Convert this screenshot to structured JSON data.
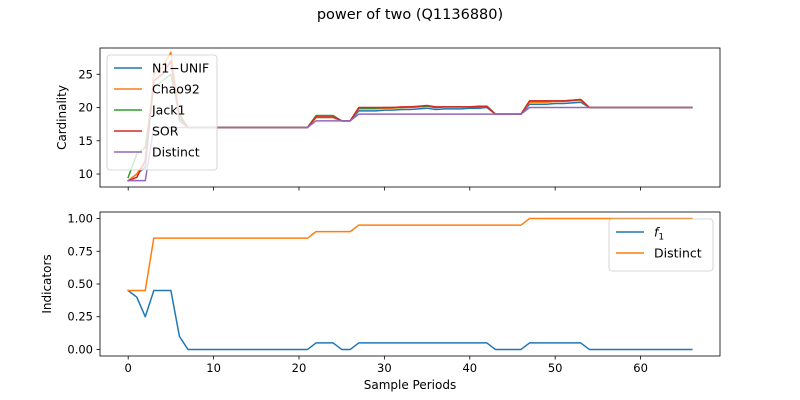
{
  "figure": {
    "suptitle": "power of two (Q1136880)"
  },
  "chart_data": [
    {
      "type": "line",
      "title": "",
      "xlabel": "",
      "ylabel": "Cardinality",
      "xlim": [
        -3.3,
        69.3
      ],
      "ylim": [
        8.05,
        28.95
      ],
      "xticks": [
        0,
        10,
        20,
        30,
        40,
        50,
        60
      ],
      "xtick_labels_visible": false,
      "yticks": [
        10,
        15,
        20,
        25
      ],
      "ytick_labels": [
        "10",
        "15",
        "20",
        "25"
      ],
      "grid": false,
      "legend_position": "upper-left",
      "series": [
        {
          "name": "N1−UNIF",
          "color": "#1f77b4",
          "x": [
            0,
            1,
            2,
            3,
            4,
            5,
            6,
            7,
            8,
            9,
            10,
            11,
            12,
            13,
            14,
            15,
            16,
            17,
            18,
            19,
            20,
            21,
            22,
            23,
            24,
            25,
            26,
            27,
            28,
            29,
            30,
            31,
            32,
            33,
            34,
            35,
            36,
            37,
            38,
            39,
            40,
            41,
            42,
            43,
            44,
            45,
            46,
            47,
            48,
            49,
            50,
            51,
            52,
            53,
            54,
            55,
            56,
            57,
            58,
            59,
            60,
            61,
            62,
            63,
            64,
            65,
            66
          ],
          "y": [
            9,
            10,
            11,
            24,
            25,
            27,
            18,
            17,
            17,
            17,
            17,
            17,
            17,
            17,
            17,
            17,
            17,
            17,
            17,
            17,
            17,
            17,
            18.5,
            18.5,
            18.5,
            18,
            18,
            19.5,
            19.5,
            19.5,
            19.6,
            19.6,
            19.7,
            19.7,
            19.8,
            19.9,
            19.7,
            19.8,
            19.8,
            19.8,
            19.9,
            19.9,
            20,
            19,
            19,
            19,
            19,
            20.5,
            20.5,
            20.5,
            20.6,
            20.6,
            20.7,
            20.8,
            20,
            20,
            20,
            20,
            20,
            20,
            20,
            20,
            20,
            20,
            20,
            20,
            20
          ]
        },
        {
          "name": "Chao92",
          "color": "#ff7f0e",
          "x": [
            0,
            1,
            2,
            3,
            4,
            5,
            6,
            7,
            8,
            9,
            10,
            11,
            12,
            13,
            14,
            15,
            16,
            17,
            18,
            19,
            20,
            21,
            22,
            23,
            24,
            25,
            26,
            27,
            28,
            29,
            30,
            31,
            32,
            33,
            34,
            35,
            36,
            37,
            38,
            39,
            40,
            41,
            42,
            43,
            44,
            45,
            46,
            47,
            48,
            49,
            50,
            51,
            52,
            53,
            54,
            55,
            56,
            57,
            58,
            59,
            60,
            61,
            62,
            63,
            64,
            65,
            66
          ],
          "y": [
            9,
            10,
            12,
            25,
            26,
            28.3,
            18.5,
            17,
            17,
            17,
            17,
            17,
            17,
            17,
            17,
            17,
            17,
            17,
            17,
            17,
            17,
            17,
            18.5,
            18.5,
            18.5,
            18,
            18,
            19.8,
            19.8,
            19.8,
            19.9,
            19.9,
            20,
            20,
            20.1,
            20.2,
            20,
            20.1,
            20.1,
            20.1,
            20.1,
            20.1,
            20.2,
            19,
            19,
            19,
            19,
            20.8,
            20.8,
            20.8,
            20.9,
            20.9,
            21,
            21.1,
            20,
            20,
            20,
            20,
            20,
            20,
            20,
            20,
            20,
            20,
            20,
            20,
            20
          ]
        },
        {
          "name": "Jack1",
          "color": "#2ca02c",
          "x": [
            0,
            1,
            2,
            3,
            4,
            5,
            6,
            7,
            8,
            9,
            10,
            11,
            12,
            13,
            14,
            15,
            16,
            17,
            18,
            19,
            20,
            21,
            22,
            23,
            24,
            25,
            26,
            27,
            28,
            29,
            30,
            31,
            32,
            33,
            34,
            35,
            36,
            37,
            38,
            39,
            40,
            41,
            42,
            43,
            44,
            45,
            46,
            47,
            48,
            49,
            50,
            51,
            52,
            53,
            54,
            55,
            56,
            57,
            58,
            59,
            60,
            61,
            62,
            63,
            64,
            65,
            66
          ],
          "y": [
            9.5,
            13,
            14,
            23,
            24,
            25,
            19,
            17,
            17,
            17,
            17,
            17,
            17,
            17,
            17,
            17,
            17,
            17,
            17,
            17,
            17,
            17,
            18.8,
            18.8,
            18.8,
            18,
            18,
            19.9,
            19.9,
            19.9,
            20,
            20,
            20,
            20.1,
            20.1,
            20.2,
            20,
            20.1,
            20.1,
            20.1,
            20.1,
            20.1,
            20.2,
            19,
            19,
            19,
            19,
            21,
            21,
            21,
            21,
            21,
            21.1,
            21.2,
            20,
            20,
            20,
            20,
            20,
            20,
            20,
            20,
            20,
            20,
            20,
            20,
            20
          ]
        },
        {
          "name": "SOR",
          "color": "#d62728",
          "x": [
            0,
            1,
            2,
            3,
            4,
            5,
            6,
            7,
            8,
            9,
            10,
            11,
            12,
            13,
            14,
            15,
            16,
            17,
            18,
            19,
            20,
            21,
            22,
            23,
            24,
            25,
            26,
            27,
            28,
            29,
            30,
            31,
            32,
            33,
            34,
            35,
            36,
            37,
            38,
            39,
            40,
            41,
            42,
            43,
            44,
            45,
            46,
            47,
            48,
            49,
            50,
            51,
            52,
            53,
            54,
            55,
            56,
            57,
            58,
            59,
            60,
            61,
            62,
            63,
            64,
            65,
            66
          ],
          "y": [
            9,
            9.5,
            12,
            24,
            25,
            27,
            18.5,
            17,
            17,
            17,
            17,
            17,
            17,
            17,
            17,
            17,
            17,
            17,
            17,
            17,
            17,
            17,
            18.6,
            18.6,
            18.6,
            18,
            18,
            20,
            20,
            20,
            20,
            20,
            20.1,
            20.1,
            20.2,
            20.3,
            20.1,
            20.1,
            20.1,
            20.1,
            20.1,
            20.2,
            20.2,
            19,
            19,
            19,
            19,
            21,
            21,
            21,
            21,
            21,
            21.1,
            21.2,
            20,
            20,
            20,
            20,
            20,
            20,
            20,
            20,
            20,
            20,
            20,
            20,
            20
          ]
        },
        {
          "name": "Distinct",
          "color": "#9467bd",
          "x": [
            0,
            1,
            2,
            3,
            4,
            5,
            6,
            7,
            8,
            9,
            10,
            11,
            12,
            13,
            14,
            15,
            16,
            17,
            18,
            19,
            20,
            21,
            22,
            23,
            24,
            25,
            26,
            27,
            28,
            29,
            30,
            31,
            32,
            33,
            34,
            35,
            36,
            37,
            38,
            39,
            40,
            41,
            42,
            43,
            44,
            45,
            46,
            47,
            48,
            49,
            50,
            51,
            52,
            53,
            54,
            55,
            56,
            57,
            58,
            59,
            60,
            61,
            62,
            63,
            64,
            65,
            66
          ],
          "y": [
            9,
            9,
            9,
            17,
            17,
            17,
            17,
            17,
            17,
            17,
            17,
            17,
            17,
            17,
            17,
            17,
            17,
            17,
            17,
            17,
            17,
            17,
            18,
            18,
            18,
            18,
            18,
            19,
            19,
            19,
            19,
            19,
            19,
            19,
            19,
            19,
            19,
            19,
            19,
            19,
            19,
            19,
            19,
            19,
            19,
            19,
            19,
            20,
            20,
            20,
            20,
            20,
            20,
            20,
            20,
            20,
            20,
            20,
            20,
            20,
            20,
            20,
            20,
            20,
            20,
            20,
            20
          ]
        }
      ]
    },
    {
      "type": "line",
      "title": "",
      "xlabel": "Sample Periods",
      "ylabel": "Indicators",
      "xlim": [
        -3.3,
        69.3
      ],
      "ylim": [
        -0.05,
        1.05
      ],
      "xticks": [
        0,
        10,
        20,
        30,
        40,
        50,
        60
      ],
      "xtick_labels": [
        "0",
        "10",
        "20",
        "30",
        "40",
        "50",
        "60"
      ],
      "yticks": [
        0,
        0.25,
        0.5,
        0.75,
        1.0
      ],
      "ytick_labels": [
        "0.00",
        "0.25",
        "0.50",
        "0.75",
        "1.00"
      ],
      "grid": false,
      "legend_position": "upper-right",
      "series": [
        {
          "name": "f",
          "name_subscript": "1",
          "color": "#1f77b4",
          "x": [
            0,
            1,
            2,
            3,
            4,
            5,
            6,
            7,
            8,
            9,
            10,
            11,
            12,
            13,
            14,
            15,
            16,
            17,
            18,
            19,
            20,
            21,
            22,
            23,
            24,
            25,
            26,
            27,
            28,
            29,
            30,
            31,
            32,
            33,
            34,
            35,
            36,
            37,
            38,
            39,
            40,
            41,
            42,
            43,
            44,
            45,
            46,
            47,
            48,
            49,
            50,
            51,
            52,
            53,
            54,
            55,
            56,
            57,
            58,
            59,
            60,
            61,
            62,
            63,
            64,
            65,
            66
          ],
          "y": [
            0.45,
            0.4,
            0.25,
            0.45,
            0.45,
            0.45,
            0.1,
            0,
            0,
            0,
            0,
            0,
            0,
            0,
            0,
            0,
            0,
            0,
            0,
            0,
            0,
            0,
            0.05,
            0.05,
            0.05,
            0,
            0,
            0.05,
            0.05,
            0.05,
            0.05,
            0.05,
            0.05,
            0.05,
            0.05,
            0.05,
            0.05,
            0.05,
            0.05,
            0.05,
            0.05,
            0.05,
            0.05,
            0,
            0,
            0,
            0,
            0.05,
            0.05,
            0.05,
            0.05,
            0.05,
            0.05,
            0.05,
            0,
            0,
            0,
            0,
            0,
            0,
            0,
            0,
            0,
            0,
            0,
            0,
            0
          ]
        },
        {
          "name": "Distinct",
          "color": "#ff7f0e",
          "x": [
            0,
            1,
            2,
            3,
            4,
            5,
            6,
            7,
            8,
            9,
            10,
            11,
            12,
            13,
            14,
            15,
            16,
            17,
            18,
            19,
            20,
            21,
            22,
            23,
            24,
            25,
            26,
            27,
            28,
            29,
            30,
            31,
            32,
            33,
            34,
            35,
            36,
            37,
            38,
            39,
            40,
            41,
            42,
            43,
            44,
            45,
            46,
            47,
            48,
            49,
            50,
            51,
            52,
            53,
            54,
            55,
            56,
            57,
            58,
            59,
            60,
            61,
            62,
            63,
            64,
            65,
            66
          ],
          "y": [
            0.45,
            0.45,
            0.45,
            0.85,
            0.85,
            0.85,
            0.85,
            0.85,
            0.85,
            0.85,
            0.85,
            0.85,
            0.85,
            0.85,
            0.85,
            0.85,
            0.85,
            0.85,
            0.85,
            0.85,
            0.85,
            0.85,
            0.9,
            0.9,
            0.9,
            0.9,
            0.9,
            0.95,
            0.95,
            0.95,
            0.95,
            0.95,
            0.95,
            0.95,
            0.95,
            0.95,
            0.95,
            0.95,
            0.95,
            0.95,
            0.95,
            0.95,
            0.95,
            0.95,
            0.95,
            0.95,
            0.95,
            1,
            1,
            1,
            1,
            1,
            1,
            1,
            1,
            1,
            1,
            1,
            1,
            1,
            1,
            1,
            1,
            1,
            1,
            1,
            1
          ]
        }
      ]
    }
  ]
}
